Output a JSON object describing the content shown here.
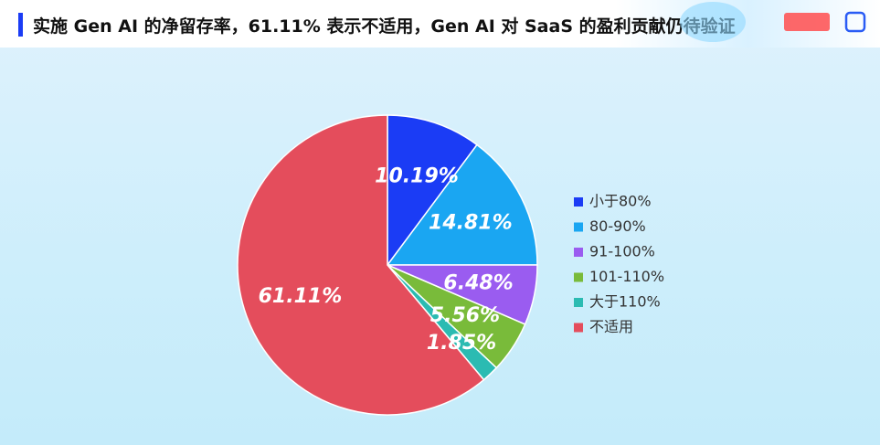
{
  "chart_data": {
    "type": "pie",
    "title": "实施 Gen AI 的净留存率，61.11% 表示不适用，Gen AI 对 SaaS 的盈利贡献仍待验证",
    "categories": [
      "小于80%",
      "80-90%",
      "91-100%",
      "101-110%",
      "大于110%",
      "不适用"
    ],
    "values": [
      10.19,
      14.81,
      6.48,
      5.56,
      1.85,
      61.11
    ],
    "value_labels": [
      "10.19%",
      "14.81%",
      "6.48%",
      "5.56%",
      "1.85%",
      "61.11%"
    ],
    "colors": [
      "#1b3cf5",
      "#1aa6f2",
      "#9a5cf0",
      "#79bb3a",
      "#2bbbb2",
      "#e44d5c"
    ],
    "legend": "right"
  }
}
